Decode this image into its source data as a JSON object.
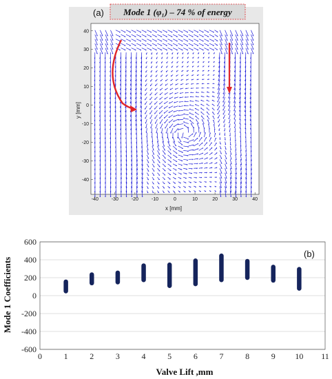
{
  "chart_data": [
    {
      "type": "quiver",
      "panel_label": "(a)",
      "title": "Mode 1 (φ₁) – 74 % of energy",
      "xlabel": "x [mm]",
      "ylabel": "y [mm]",
      "xlim": [
        -42,
        42
      ],
      "ylim": [
        -48,
        44
      ],
      "xticks": [
        "-40",
        "-30",
        "-20",
        "-10",
        "0",
        "10",
        "20",
        "30",
        "40"
      ],
      "yticks": [
        "40",
        "30",
        "20",
        "10",
        "0",
        "-10",
        "-20",
        "-30",
        "-40"
      ],
      "vector_color": "#1a1ad8",
      "annotation_color": "#e0262a"
    },
    {
      "type": "range",
      "panel_label": "(b)",
      "xlabel": "Valve Lift ,mm",
      "ylabel": "Mode 1 Coefficients",
      "xlim": [
        0,
        11
      ],
      "ylim": [
        -600,
        600
      ],
      "xticks": [
        "0",
        "1",
        "2",
        "3",
        "4",
        "5",
        "6",
        "7",
        "8",
        "9",
        "10",
        "11"
      ],
      "yticks": [
        "600",
        "400",
        "200",
        "0",
        "-200",
        "-400",
        "-600"
      ],
      "bar_color": "#15245c",
      "x": [
        1,
        2,
        3,
        4,
        5,
        6,
        7,
        8,
        9,
        10
      ],
      "low": [
        50,
        140,
        150,
        175,
        110,
        130,
        175,
        200,
        170,
        80
      ],
      "high": [
        155,
        235,
        255,
        335,
        345,
        390,
        445,
        385,
        320,
        295
      ]
    }
  ]
}
